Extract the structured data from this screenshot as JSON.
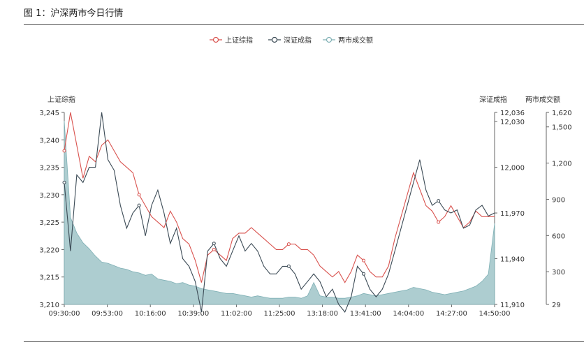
{
  "figure_title": "图 1：沪深两市今日行情",
  "chart_data": {
    "type": "line",
    "legend": [
      "上证综指",
      "深证成指",
      "两市成交额"
    ],
    "legend_position": "top-center",
    "grid": false,
    "colors": {
      "sh": "#d9534f",
      "sz": "#3b4a55",
      "vol_fill": "#9fc4c8",
      "vol_line": "#7fb0b5",
      "axis": "#666666"
    },
    "x_tick_labels": [
      "09:30:00",
      "09:53:00",
      "10:16:00",
      "10:39:00",
      "11:02:00",
      "11:25:00",
      "13:18:00",
      "13:41:00",
      "14:04:00",
      "14:27:00",
      "14:50:00"
    ],
    "y_axes": {
      "left": {
        "label": "上证综指",
        "min": 3210,
        "max": 3245,
        "ticks": [
          "3,245",
          "3,240",
          "3,235",
          "3,230",
          "3,225",
          "3,220",
          "3,215",
          "3,210"
        ],
        "tick_values": [
          3245,
          3240,
          3235,
          3230,
          3225,
          3220,
          3215,
          3210
        ]
      },
      "right1": {
        "label": "深证成指",
        "min": 11910,
        "max": 12036,
        "ticks": [
          "12,036",
          "12,030",
          "12,000",
          "11,970",
          "11,940",
          "11,910"
        ],
        "tick_values": [
          12036,
          12030,
          12000,
          11970,
          11940,
          11910
        ]
      },
      "right2": {
        "label": "两市成交额",
        "min": 29,
        "max": 1620,
        "ticks": [
          "1,620",
          "1,500",
          "1,200",
          "900",
          "600",
          "300",
          "29"
        ],
        "tick_values": [
          1620,
          1500,
          1200,
          900,
          600,
          300,
          29
        ]
      }
    },
    "series": [
      {
        "name": "上证综指",
        "axis": "left",
        "values": [
          3238,
          3245,
          3239,
          3233,
          3237,
          3236,
          3239,
          3240,
          3238,
          3236,
          3235,
          3234,
          3230,
          3228,
          3226,
          3225,
          3224,
          3227,
          3225,
          3222,
          3221,
          3218,
          3214,
          3219,
          3220,
          3219,
          3218,
          3222,
          3223,
          3223,
          3224,
          3223,
          3222,
          3221,
          3220,
          3220,
          3221,
          3221,
          3220,
          3220,
          3219,
          3217,
          3216,
          3215,
          3216,
          3214,
          3216,
          3219,
          3218,
          3216,
          3215,
          3215,
          3217,
          3222,
          3226,
          3230,
          3234,
          3231,
          3228,
          3227,
          3225,
          3226,
          3228,
          3226,
          3224,
          3225,
          3227,
          3226,
          3226,
          3226
        ]
      },
      {
        "name": "深证成指",
        "axis": "right1",
        "values": [
          11990,
          11945,
          11995,
          11990,
          12000,
          12000,
          12036,
          12005,
          11998,
          11975,
          11960,
          11970,
          11975,
          11955,
          11975,
          11985,
          11970,
          11950,
          11960,
          11940,
          11935,
          11925,
          11905,
          11945,
          11950,
          11940,
          11935,
          11945,
          11955,
          11945,
          11950,
          11945,
          11935,
          11930,
          11930,
          11935,
          11935,
          11930,
          11920,
          11925,
          11930,
          11925,
          11915,
          11920,
          11910,
          11905,
          11915,
          11935,
          11930,
          11920,
          11915,
          11920,
          11930,
          11945,
          11960,
          11975,
          11990,
          12005,
          11985,
          11975,
          11978,
          11972,
          11970,
          11972,
          11960,
          11962,
          11972,
          11975,
          11968,
          11970
        ]
      },
      {
        "name": "两市成交额",
        "axis": "right2",
        "type": "area",
        "values": [
          1550,
          750,
          620,
          540,
          490,
          430,
          380,
          370,
          350,
          330,
          320,
          300,
          290,
          270,
          280,
          240,
          230,
          220,
          200,
          210,
          190,
          180,
          160,
          150,
          140,
          130,
          120,
          120,
          110,
          100,
          90,
          100,
          90,
          80,
          80,
          80,
          90,
          90,
          80,
          100,
          210,
          100,
          90,
          90,
          80,
          80,
          90,
          100,
          120,
          110,
          100,
          110,
          120,
          130,
          140,
          150,
          170,
          160,
          150,
          130,
          120,
          110,
          120,
          130,
          140,
          160,
          180,
          220,
          280,
          700
        ]
      }
    ]
  }
}
